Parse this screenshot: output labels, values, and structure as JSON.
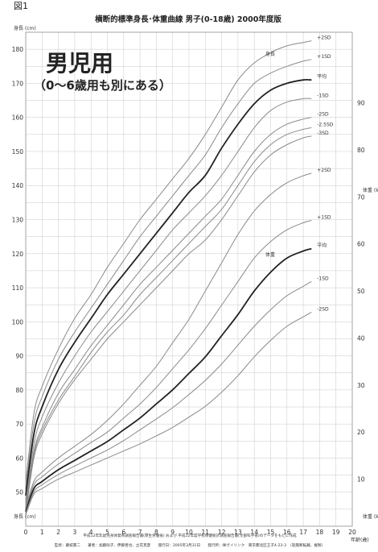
{
  "figure_label": "図1",
  "chart_title": "横断的標準身長･体重曲線 男子(0-18歳) 2000年度版",
  "overlay": {
    "heading": "男児用",
    "subheading": "（0〜6歳用も別にある）"
  },
  "footer": {
    "line1": "平成12年乳幼児身体発育調査報告書(厚生労働省) および 平成12年度学校保健統計調査報告書(文部科学省)のデータをもとに作成",
    "line2": "監修：藤枝憲二　　著者：加藤則子、伊藤善也、立花克彦　　発行日：2005年3月31日　　発行所：㈱ヴイリンク　東京都北区王子4-23-3　（就無断転載、複製）"
  },
  "chart_data": {
    "type": "line",
    "x_axis": {
      "label": "年齢(歳)",
      "range": [
        0,
        20
      ],
      "ticks": [
        0,
        1,
        2,
        3,
        4,
        5,
        6,
        7,
        8,
        9,
        10,
        11,
        12,
        13,
        14,
        15,
        16,
        17,
        18,
        19,
        20
      ]
    },
    "left_axis": {
      "label_top": "身長 (cm)",
      "label_bottom": "身長 (cm)",
      "range": [
        40,
        185
      ],
      "ticks": [
        50,
        60,
        70,
        80,
        90,
        100,
        110,
        120,
        130,
        140,
        150,
        160,
        170,
        180
      ]
    },
    "right_axis": {
      "label_top": "体重 (kg)",
      "label_bottom": "体重 (kg)",
      "range": [
        0,
        105
      ],
      "ticks": [
        10,
        20,
        30,
        40,
        50,
        60,
        70,
        80,
        90
      ]
    },
    "grid": true,
    "height_group_label": "身長",
    "weight_group_label": "体重",
    "height_curves": [
      {
        "label": "+2SD",
        "is_mean": false,
        "x": [
          0,
          0.5,
          1,
          2,
          3,
          4,
          5,
          6,
          7,
          8,
          9,
          10,
          11,
          12,
          13,
          14,
          15,
          16,
          17,
          17.5
        ],
        "y": [
          53,
          73,
          81,
          92,
          101,
          108,
          116,
          123,
          130,
          136,
          142,
          148,
          155,
          163,
          171,
          176,
          179,
          181,
          182,
          182.5
        ]
      },
      {
        "label": "+1SD",
        "is_mean": false,
        "x": [
          0,
          0.5,
          1,
          2,
          3,
          4,
          5,
          6,
          7,
          8,
          9,
          10,
          11,
          12,
          13,
          14,
          15,
          16,
          17,
          17.5
        ],
        "y": [
          51,
          70,
          78,
          89,
          97,
          104,
          111,
          118,
          125,
          131,
          137,
          143,
          149,
          157,
          164,
          170,
          173,
          175,
          176.5,
          177
        ]
      },
      {
        "label": "平均",
        "is_mean": true,
        "x": [
          0,
          0.5,
          1,
          2,
          3,
          4,
          5,
          6,
          7,
          8,
          9,
          10,
          11,
          12,
          13,
          14,
          15,
          16,
          17,
          17.5
        ],
        "y": [
          49,
          67,
          75,
          86,
          94,
          101,
          108,
          114,
          120,
          126,
          132,
          138,
          143,
          151,
          158,
          164,
          168,
          170,
          171,
          171
        ]
      },
      {
        "label": "-1SD",
        "is_mean": false,
        "x": [
          0,
          0.5,
          1,
          2,
          3,
          4,
          5,
          6,
          7,
          8,
          9,
          10,
          11,
          12,
          13,
          14,
          15,
          16,
          17,
          17.5
        ],
        "y": [
          47,
          64,
          72,
          82,
          90,
          97,
          103,
          109,
          115,
          121,
          127,
          132,
          137,
          143,
          150,
          157,
          162,
          164.5,
          165.5,
          165.5
        ]
      },
      {
        "label": "-2SD",
        "is_mean": false,
        "x": [
          0,
          0.5,
          1,
          2,
          3,
          4,
          5,
          6,
          7,
          8,
          9,
          10,
          11,
          12,
          13,
          14,
          15,
          16,
          17,
          17.5
        ],
        "y": [
          46,
          62,
          69,
          79,
          86,
          93,
          99,
          105,
          111,
          116,
          121,
          126,
          131,
          136,
          143,
          150,
          155,
          158,
          159.5,
          160
        ]
      },
      {
        "label": "-2.5SD",
        "is_mean": false,
        "x": [
          0,
          0.5,
          1,
          2,
          3,
          4,
          5,
          6,
          7,
          8,
          9,
          10,
          11,
          12,
          13,
          14,
          15,
          16,
          17,
          17.5
        ],
        "y": [
          45,
          61,
          68,
          77,
          84,
          91,
          97,
          102,
          108,
          113,
          118,
          123,
          128,
          133,
          140,
          147,
          152,
          155,
          156.5,
          157
        ]
      },
      {
        "label": "-3SD",
        "is_mean": false,
        "x": [
          0,
          0.5,
          1,
          2,
          3,
          4,
          5,
          6,
          7,
          8,
          9,
          10,
          11,
          12,
          13,
          14,
          15,
          16,
          17,
          17.5
        ],
        "y": [
          44,
          60,
          67,
          76,
          83,
          89,
          95,
          100,
          105,
          110,
          115,
          120,
          124,
          130,
          137,
          144,
          149,
          152,
          154,
          154.5
        ]
      }
    ],
    "weight_curves": [
      {
        "label": "+2SD",
        "is_mean": false,
        "x": [
          0,
          0.5,
          1,
          2,
          3,
          4,
          5,
          6,
          7,
          8,
          9,
          10,
          11,
          12,
          13,
          14,
          15,
          16,
          17,
          17.5
        ],
        "y": [
          4,
          9.5,
          11.5,
          14.5,
          17,
          19.5,
          22.5,
          26,
          30,
          34,
          39,
          44,
          50,
          56,
          62,
          67,
          70.5,
          73,
          74.5,
          75
        ]
      },
      {
        "label": "+1SD",
        "is_mean": false,
        "x": [
          0,
          0.5,
          1,
          2,
          3,
          4,
          5,
          6,
          7,
          8,
          9,
          10,
          11,
          12,
          13,
          14,
          15,
          16,
          17,
          17.5
        ],
        "y": [
          3.6,
          8.8,
          10.5,
          13.2,
          15.5,
          17.8,
          20,
          23,
          26,
          29.5,
          33.5,
          37.5,
          42,
          47,
          52,
          57,
          60.5,
          63,
          64.5,
          65
        ]
      },
      {
        "label": "平均",
        "is_mean": true,
        "x": [
          0,
          0.5,
          1,
          2,
          3,
          4,
          5,
          6,
          7,
          8,
          9,
          10,
          11,
          12,
          13,
          14,
          15,
          16,
          17,
          17.5
        ],
        "y": [
          3.1,
          8,
          9.5,
          12,
          14,
          16,
          18,
          20.5,
          23,
          26,
          29,
          32.5,
          36,
          40.5,
          45,
          50,
          54,
          57,
          58.5,
          59
        ]
      },
      {
        "label": "-1SD",
        "is_mean": false,
        "x": [
          0,
          0.5,
          1,
          2,
          3,
          4,
          5,
          6,
          7,
          8,
          9,
          10,
          11,
          12,
          13,
          14,
          15,
          16,
          17,
          17.5
        ],
        "y": [
          2.8,
          7.3,
          8.8,
          11,
          12.8,
          14.5,
          16.2,
          18.2,
          20.5,
          22.8,
          25.2,
          28,
          31,
          34.5,
          38.5,
          42.5,
          46,
          49,
          51,
          52
        ]
      },
      {
        "label": "-2SD",
        "is_mean": false,
        "x": [
          0,
          0.5,
          1,
          2,
          3,
          4,
          5,
          6,
          7,
          8,
          9,
          10,
          11,
          12,
          13,
          14,
          15,
          16,
          17,
          17.5
        ],
        "y": [
          2.4,
          6.8,
          8,
          10,
          11.5,
          13,
          14.5,
          16,
          17.5,
          19.2,
          21,
          23.2,
          25.5,
          28.5,
          32,
          36,
          39.5,
          42.5,
          44.5,
          45.5
        ]
      }
    ]
  }
}
